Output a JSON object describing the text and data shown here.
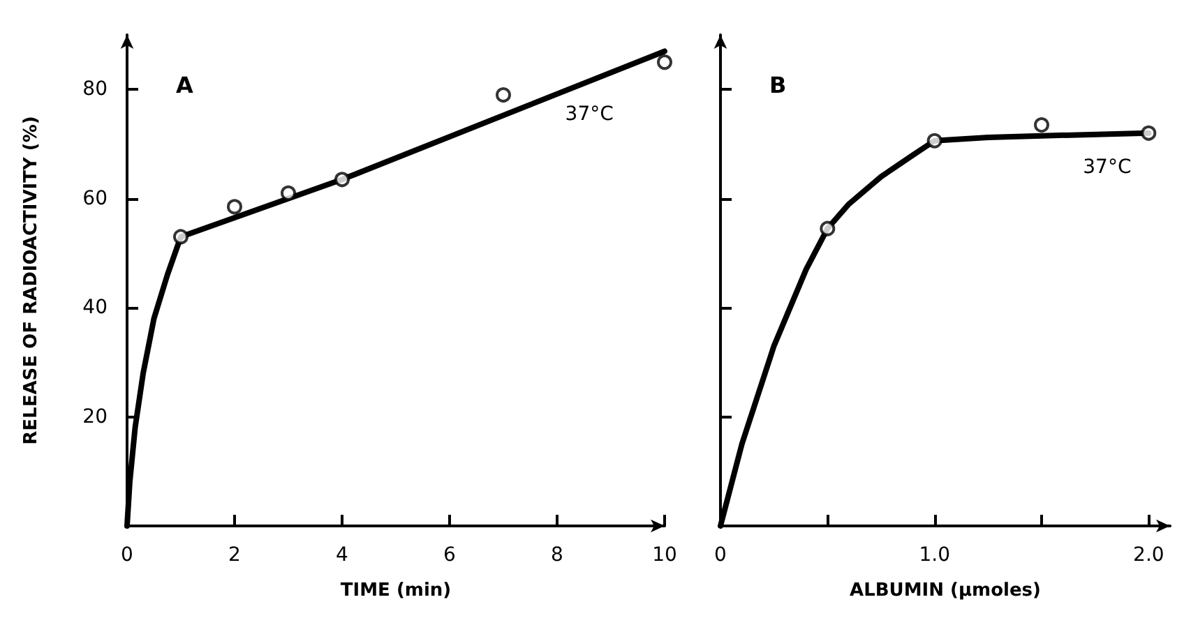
{
  "chart_data": [
    {
      "type": "scatter",
      "title": "A",
      "xlabel": "TIME (min)",
      "ylabel": "RELEASE OF RADIOACTIVITY (%)",
      "xlim": [
        0,
        10
      ],
      "xticks": [
        0,
        2,
        4,
        6,
        8,
        10
      ],
      "ylim": [
        0,
        90
      ],
      "yticks": [
        20,
        40,
        60,
        80
      ],
      "grid": false,
      "annotations": [
        "37°C"
      ],
      "series": [
        {
          "marker": "circle",
          "color": "#000000",
          "x": [
            1,
            2,
            3,
            4,
            7,
            10
          ],
          "values": [
            53,
            58.5,
            61,
            63.5,
            79,
            85
          ]
        },
        {
          "type": "line",
          "marker": "none",
          "line_style": "solid",
          "color": "#000000",
          "x": [
            0,
            0.05,
            0.15,
            0.3,
            0.5,
            0.75,
            1,
            4,
            10
          ],
          "values": [
            0,
            8,
            18,
            28,
            38,
            46,
            53,
            63.5,
            87
          ]
        }
      ]
    },
    {
      "type": "scatter",
      "title": "B",
      "xlabel": "ALBUMIN (μmoles)",
      "xlim": [
        0,
        2.1
      ],
      "xticks": [
        0,
        {
          "value": 0.5,
          "label": null
        },
        {
          "value": 1,
          "label": "1.0"
        },
        {
          "value": 1.5,
          "label": null
        },
        {
          "value": 2,
          "label": "2.0"
        }
      ],
      "ylim": [
        0,
        90
      ],
      "yticks": [
        {
          "value": 20,
          "label": null
        },
        {
          "value": 40,
          "label": null
        },
        {
          "value": 60,
          "label": null
        },
        {
          "value": 80,
          "label": null
        }
      ],
      "tick_labels": "x",
      "grid": false,
      "annotations": [
        "37°C"
      ],
      "series": [
        {
          "marker": "circle",
          "color": "#000000",
          "x": [
            0.5,
            1,
            1.5,
            2
          ],
          "values": [
            54.5,
            70.6,
            73.5,
            72
          ]
        },
        {
          "type": "line",
          "marker": "none",
          "line_style": "solid",
          "color": "#000000",
          "x": [
            0,
            0.1,
            0.25,
            0.4,
            0.5,
            0.6,
            0.75,
            0.9,
            1,
            1.25,
            1.5,
            2
          ],
          "values": [
            0,
            15,
            33,
            47,
            54.5,
            59,
            64,
            68,
            70.6,
            71.2,
            71.5,
            72
          ]
        }
      ]
    }
  ]
}
